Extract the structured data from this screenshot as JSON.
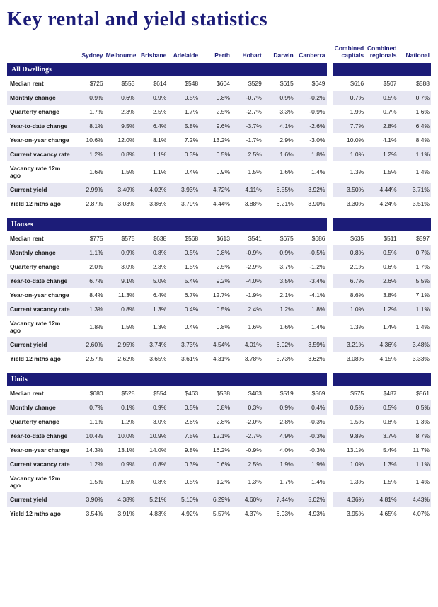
{
  "title": "Key rental and yield statistics",
  "colors": {
    "brand": "#1c1c78",
    "row_alt": "#e6e6f2",
    "background": "#ffffff",
    "text": "#1a1a1a"
  },
  "columns": {
    "cities": [
      "Sydney",
      "Melbourne",
      "Brisbane",
      "Adelaide",
      "Perth",
      "Hobart",
      "Darwin",
      "Canberra"
    ],
    "aggregates": [
      "Combined capitals",
      "Combined regionals",
      "National"
    ]
  },
  "metrics": [
    "Median rent",
    "Monthly change",
    "Quarterly change",
    "Year-to-date change",
    "Year-on-year change",
    "Current vacancy rate",
    "Vacancy rate 12m ago",
    "Current yield",
    "Yield 12 mths ago"
  ],
  "sections": [
    {
      "name": "All Dwellings",
      "rows": [
        [
          "$726",
          "$553",
          "$614",
          "$548",
          "$604",
          "$529",
          "$615",
          "$649",
          "$616",
          "$507",
          "$588"
        ],
        [
          "0.9%",
          "0.6%",
          "0.9%",
          "0.5%",
          "0.8%",
          "-0.7%",
          "0.9%",
          "-0.2%",
          "0.7%",
          "0.5%",
          "0.7%"
        ],
        [
          "1.7%",
          "2.3%",
          "2.5%",
          "1.7%",
          "2.5%",
          "-2.7%",
          "3.3%",
          "-0.9%",
          "1.9%",
          "0.7%",
          "1.6%"
        ],
        [
          "8.1%",
          "9.5%",
          "6.4%",
          "5.8%",
          "9.6%",
          "-3.7%",
          "4.1%",
          "-2.6%",
          "7.7%",
          "2.8%",
          "6.4%"
        ],
        [
          "10.6%",
          "12.0%",
          "8.1%",
          "7.2%",
          "13.2%",
          "-1.7%",
          "2.9%",
          "-3.0%",
          "10.0%",
          "4.1%",
          "8.4%"
        ],
        [
          "1.2%",
          "0.8%",
          "1.1%",
          "0.3%",
          "0.5%",
          "2.5%",
          "1.6%",
          "1.8%",
          "1.0%",
          "1.2%",
          "1.1%"
        ],
        [
          "1.6%",
          "1.5%",
          "1.1%",
          "0.4%",
          "0.9%",
          "1.5%",
          "1.6%",
          "1.4%",
          "1.3%",
          "1.5%",
          "1.4%"
        ],
        [
          "2.99%",
          "3.40%",
          "4.02%",
          "3.93%",
          "4.72%",
          "4.11%",
          "6.55%",
          "3.92%",
          "3.50%",
          "4.44%",
          "3.71%"
        ],
        [
          "2.87%",
          "3.03%",
          "3.86%",
          "3.79%",
          "4.44%",
          "3.88%",
          "6.21%",
          "3.90%",
          "3.30%",
          "4.24%",
          "3.51%"
        ]
      ]
    },
    {
      "name": "Houses",
      "rows": [
        [
          "$775",
          "$575",
          "$638",
          "$568",
          "$613",
          "$541",
          "$675",
          "$686",
          "$635",
          "$511",
          "$597"
        ],
        [
          "1.1%",
          "0.9%",
          "0.8%",
          "0.5%",
          "0.8%",
          "-0.9%",
          "0.9%",
          "-0.5%",
          "0.8%",
          "0.5%",
          "0.7%"
        ],
        [
          "2.0%",
          "3.0%",
          "2.3%",
          "1.5%",
          "2.5%",
          "-2.9%",
          "3.7%",
          "-1.2%",
          "2.1%",
          "0.6%",
          "1.7%"
        ],
        [
          "6.7%",
          "9.1%",
          "5.0%",
          "5.4%",
          "9.2%",
          "-4.0%",
          "3.5%",
          "-3.4%",
          "6.7%",
          "2.6%",
          "5.5%"
        ],
        [
          "8.4%",
          "11.3%",
          "6.4%",
          "6.7%",
          "12.7%",
          "-1.9%",
          "2.1%",
          "-4.1%",
          "8.6%",
          "3.8%",
          "7.1%"
        ],
        [
          "1.3%",
          "0.8%",
          "1.3%",
          "0.4%",
          "0.5%",
          "2.4%",
          "1.2%",
          "1.8%",
          "1.0%",
          "1.2%",
          "1.1%"
        ],
        [
          "1.8%",
          "1.5%",
          "1.3%",
          "0.4%",
          "0.8%",
          "1.6%",
          "1.6%",
          "1.4%",
          "1.3%",
          "1.4%",
          "1.4%"
        ],
        [
          "2.60%",
          "2.95%",
          "3.74%",
          "3.73%",
          "4.54%",
          "4.01%",
          "6.02%",
          "3.59%",
          "3.21%",
          "4.36%",
          "3.48%"
        ],
        [
          "2.57%",
          "2.62%",
          "3.65%",
          "3.61%",
          "4.31%",
          "3.78%",
          "5.73%",
          "3.62%",
          "3.08%",
          "4.15%",
          "3.33%"
        ]
      ]
    },
    {
      "name": "Units",
      "rows": [
        [
          "$680",
          "$528",
          "$554",
          "$463",
          "$538",
          "$463",
          "$519",
          "$569",
          "$575",
          "$487",
          "$561"
        ],
        [
          "0.7%",
          "0.1%",
          "0.9%",
          "0.5%",
          "0.8%",
          "0.3%",
          "0.9%",
          "0.4%",
          "0.5%",
          "0.5%",
          "0.5%"
        ],
        [
          "1.1%",
          "1.2%",
          "3.0%",
          "2.6%",
          "2.8%",
          "-2.0%",
          "2.8%",
          "-0.3%",
          "1.5%",
          "0.8%",
          "1.3%"
        ],
        [
          "10.4%",
          "10.0%",
          "10.9%",
          "7.5%",
          "12.1%",
          "-2.7%",
          "4.9%",
          "-0.3%",
          "9.8%",
          "3.7%",
          "8.7%"
        ],
        [
          "14.3%",
          "13.1%",
          "14.0%",
          "9.8%",
          "16.2%",
          "-0.9%",
          "4.0%",
          "-0.3%",
          "13.1%",
          "5.4%",
          "11.7%"
        ],
        [
          "1.2%",
          "0.9%",
          "0.8%",
          "0.3%",
          "0.6%",
          "2.5%",
          "1.9%",
          "1.9%",
          "1.0%",
          "1.3%",
          "1.1%"
        ],
        [
          "1.5%",
          "1.5%",
          "0.8%",
          "0.5%",
          "1.2%",
          "1.3%",
          "1.7%",
          "1.4%",
          "1.3%",
          "1.5%",
          "1.4%"
        ],
        [
          "3.90%",
          "4.38%",
          "5.21%",
          "5.10%",
          "6.29%",
          "4.60%",
          "7.44%",
          "5.02%",
          "4.36%",
          "4.81%",
          "4.43%"
        ],
        [
          "3.54%",
          "3.91%",
          "4.83%",
          "4.92%",
          "5.57%",
          "4.37%",
          "6.93%",
          "4.93%",
          "3.95%",
          "4.65%",
          "4.07%"
        ]
      ]
    }
  ]
}
